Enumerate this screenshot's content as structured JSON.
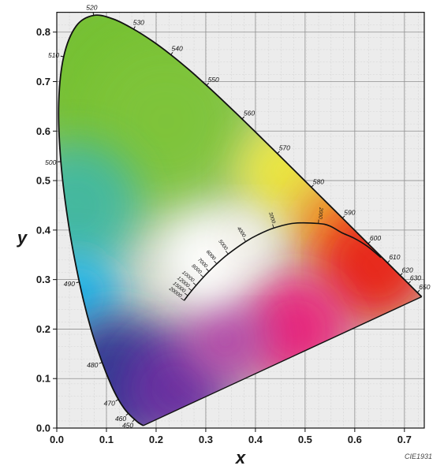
{
  "chart_data": {
    "type": "chromaticity-diagram",
    "xlabel": "x",
    "ylabel": "y",
    "xlim": [
      0.0,
      0.74
    ],
    "ylim": [
      0.0,
      0.84
    ],
    "x_ticks": [
      "0.0",
      "0.1",
      "0.2",
      "0.3",
      "0.4",
      "0.5",
      "0.6",
      "0.7"
    ],
    "y_ticks": [
      "0.0",
      "0.1",
      "0.2",
      "0.3",
      "0.4",
      "0.5",
      "0.6",
      "0.7",
      "0.8"
    ],
    "grid": true,
    "spectral_locus": [
      {
        "nm": 380,
        "x": 0.1741,
        "y": 0.005
      },
      {
        "nm": 440,
        "x": 0.1644,
        "y": 0.0109
      },
      {
        "nm": 450,
        "x": 0.1566,
        "y": 0.0177,
        "label": "450"
      },
      {
        "nm": 455,
        "x": 0.151,
        "y": 0.0227
      },
      {
        "nm": 460,
        "x": 0.144,
        "y": 0.0297,
        "label": "460"
      },
      {
        "nm": 465,
        "x": 0.1355,
        "y": 0.0399
      },
      {
        "nm": 470,
        "x": 0.1241,
        "y": 0.0578,
        "label": "470"
      },
      {
        "nm": 475,
        "x": 0.1096,
        "y": 0.0868
      },
      {
        "nm": 480,
        "x": 0.0913,
        "y": 0.1327,
        "label": "480"
      },
      {
        "nm": 485,
        "x": 0.0687,
        "y": 0.2007
      },
      {
        "nm": 490,
        "x": 0.0454,
        "y": 0.295,
        "label": "490"
      },
      {
        "nm": 495,
        "x": 0.0235,
        "y": 0.4127
      },
      {
        "nm": 500,
        "x": 0.0082,
        "y": 0.5384,
        "label": "500"
      },
      {
        "nm": 505,
        "x": 0.0039,
        "y": 0.6548
      },
      {
        "nm": 510,
        "x": 0.0139,
        "y": 0.7502,
        "label": "510"
      },
      {
        "nm": 515,
        "x": 0.0389,
        "y": 0.812
      },
      {
        "nm": 520,
        "x": 0.0743,
        "y": 0.8338,
        "label": "520"
      },
      {
        "nm": 525,
        "x": 0.1142,
        "y": 0.8262
      },
      {
        "nm": 530,
        "x": 0.1547,
        "y": 0.8059,
        "label": "530"
      },
      {
        "nm": 535,
        "x": 0.1929,
        "y": 0.7816
      },
      {
        "nm": 540,
        "x": 0.2296,
        "y": 0.7543,
        "label": "540"
      },
      {
        "nm": 545,
        "x": 0.2658,
        "y": 0.7243
      },
      {
        "nm": 550,
        "x": 0.3016,
        "y": 0.6923,
        "label": "550"
      },
      {
        "nm": 555,
        "x": 0.3373,
        "y": 0.6589
      },
      {
        "nm": 560,
        "x": 0.3731,
        "y": 0.6245,
        "label": "560"
      },
      {
        "nm": 565,
        "x": 0.4087,
        "y": 0.5896
      },
      {
        "nm": 570,
        "x": 0.4441,
        "y": 0.5547,
        "label": "570"
      },
      {
        "nm": 575,
        "x": 0.4788,
        "y": 0.5202
      },
      {
        "nm": 580,
        "x": 0.5125,
        "y": 0.4866,
        "label": "580"
      },
      {
        "nm": 585,
        "x": 0.5448,
        "y": 0.4544
      },
      {
        "nm": 590,
        "x": 0.5752,
        "y": 0.4242,
        "label": "590"
      },
      {
        "nm": 595,
        "x": 0.6029,
        "y": 0.3965
      },
      {
        "nm": 600,
        "x": 0.627,
        "y": 0.3725,
        "label": "600"
      },
      {
        "nm": 605,
        "x": 0.6482,
        "y": 0.3514
      },
      {
        "nm": 610,
        "x": 0.6658,
        "y": 0.334,
        "label": "610"
      },
      {
        "nm": 620,
        "x": 0.6915,
        "y": 0.3083,
        "label": "620"
      },
      {
        "nm": 630,
        "x": 0.7079,
        "y": 0.292,
        "label": "630"
      },
      {
        "nm": 650,
        "x": 0.726,
        "y": 0.274,
        "label": "650"
      },
      {
        "nm": 700,
        "x": 0.7347,
        "y": 0.2653
      }
    ],
    "planckian_locus": [
      {
        "T": 1000,
        "x": 0.6526,
        "y": 0.3446
      },
      {
        "T": 1200,
        "x": 0.6249,
        "y": 0.3676
      },
      {
        "T": 1400,
        "x": 0.5984,
        "y": 0.3838
      },
      {
        "T": 1600,
        "x": 0.5737,
        "y": 0.3948
      },
      {
        "T": 1800,
        "x": 0.5497,
        "y": 0.4083
      },
      {
        "T": 2000,
        "x": 0.5268,
        "y": 0.4133,
        "label": "2000"
      },
      {
        "T": 2500,
        "x": 0.477,
        "y": 0.4137
      },
      {
        "T": 3000,
        "x": 0.4369,
        "y": 0.4041,
        "label": "3000"
      },
      {
        "T": 3500,
        "x": 0.4053,
        "y": 0.3907
      },
      {
        "T": 4000,
        "x": 0.3805,
        "y": 0.3768,
        "label": "4000"
      },
      {
        "T": 5000,
        "x": 0.3451,
        "y": 0.3516,
        "label": "5000"
      },
      {
        "T": 6000,
        "x": 0.3221,
        "y": 0.3318,
        "label": "6000"
      },
      {
        "T": 7000,
        "x": 0.3064,
        "y": 0.3166,
        "label": "7000"
      },
      {
        "T": 8000,
        "x": 0.2952,
        "y": 0.3048,
        "label": "8000"
      },
      {
        "T": 10000,
        "x": 0.2806,
        "y": 0.2883,
        "label": "10000"
      },
      {
        "T": 12000,
        "x": 0.2716,
        "y": 0.2776,
        "label": "12000"
      },
      {
        "T": 15000,
        "x": 0.2637,
        "y": 0.2676,
        "label": "15000"
      },
      {
        "T": 20000,
        "x": 0.2564,
        "y": 0.2577,
        "label": "20000"
      }
    ],
    "credit": "CIE1931",
    "colors": {
      "frame": "#111111",
      "grid": "#9a9a9a",
      "plot_background": "#ededed",
      "green": "#6fbf2a",
      "cyan": "#15b2ea",
      "blue": "#2a3590",
      "violet": "#6a2fa0",
      "magenta": "#e8217a",
      "red": "#e82018",
      "yellow": "#ede83a",
      "white": "#ffffff"
    }
  }
}
